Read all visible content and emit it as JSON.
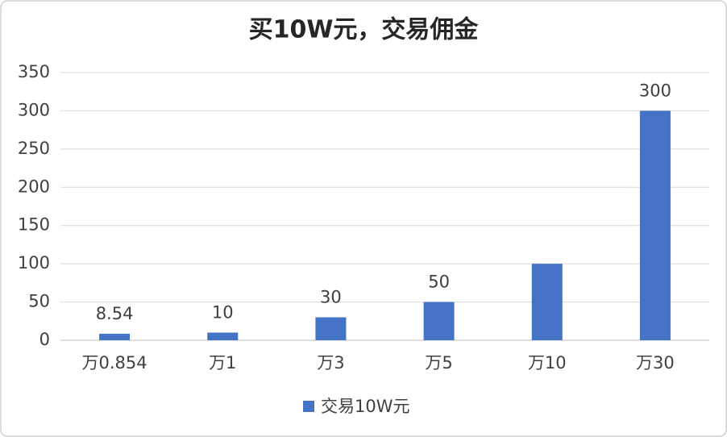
{
  "chart_data": {
    "type": "bar",
    "title": "买10W元，交易佣金",
    "categories": [
      "万0.854",
      "万1",
      "万3",
      "万5",
      "万10",
      "万30"
    ],
    "series": [
      {
        "name": "交易10W元",
        "color": "#4472c4",
        "values": [
          8.54,
          10,
          30,
          50,
          100,
          300
        ],
        "value_labels": [
          "8.54",
          "10",
          "30",
          "50",
          null,
          "300"
        ]
      }
    ],
    "ylim": [
      0,
      350
    ],
    "yticks": [
      0,
      50,
      100,
      150,
      200,
      250,
      300,
      350
    ],
    "grid": true,
    "legend": "bottom"
  }
}
